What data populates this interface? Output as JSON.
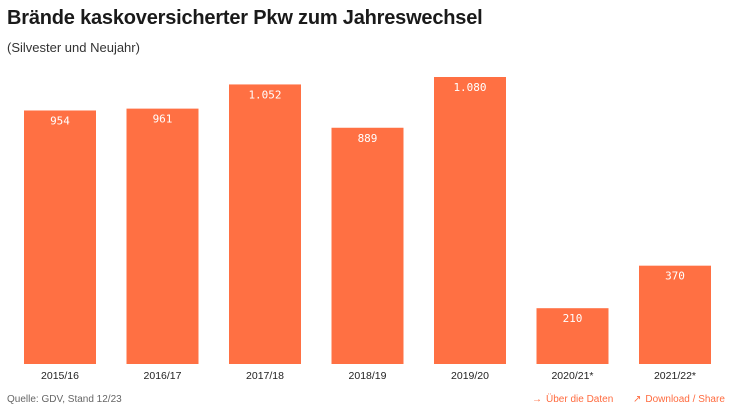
{
  "chart_data": {
    "type": "bar",
    "title": "Brände kaskoversicherter Pkw zum Jahreswechsel",
    "subtitle": "(Silvester und Neujahr)",
    "categories": [
      "2015/16",
      "2016/17",
      "2017/18",
      "2018/19",
      "2019/20",
      "2020/21*",
      "2021/22*"
    ],
    "values": [
      954,
      961,
      1052,
      889,
      1080,
      210,
      370
    ],
    "value_labels": [
      "954",
      "961",
      "1.052",
      "889",
      "1.080",
      "210",
      "370"
    ],
    "bar_color": "#ff7043",
    "ylim": [
      0,
      1080
    ],
    "grid": false,
    "xlabel": "",
    "ylabel": ""
  },
  "footer": {
    "source": "Quelle: GDV, Stand 12/23",
    "data_link": "Über die Daten",
    "data_link_icon": "arrow-right-icon",
    "download_link": "Download / Share",
    "download_link_icon": "arrow-up-right-icon"
  },
  "colors": {
    "accent": "#ff6b3f"
  }
}
